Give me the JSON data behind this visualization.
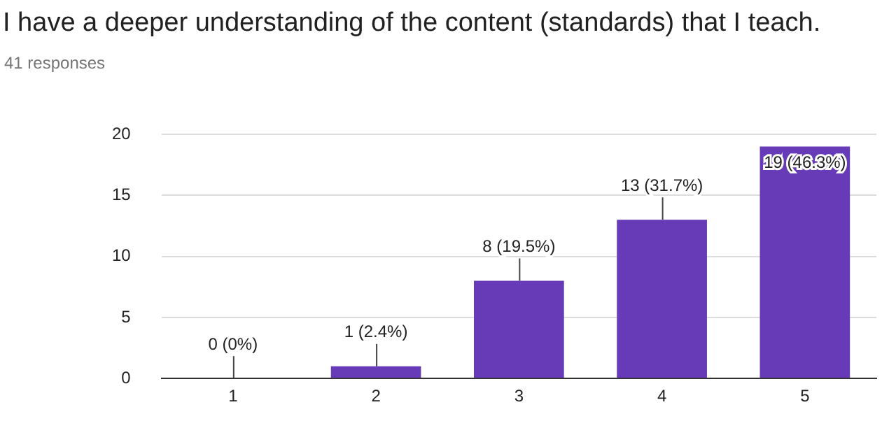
{
  "chart_data": {
    "type": "bar",
    "title": "I have a deeper understanding of the content (standards) that I teach.",
    "subtitle": "41 responses",
    "categories": [
      "1",
      "2",
      "3",
      "4",
      "5"
    ],
    "values": [
      0,
      1,
      8,
      13,
      19
    ],
    "value_labels": [
      "0 (0%)",
      "1 (2.4%)",
      "8 (19.5%)",
      "13 (31.7%)",
      "19 (46.3%)"
    ],
    "color": "#673ab7",
    "ylim": [
      0,
      20
    ],
    "yticks": [
      0,
      5,
      10,
      15,
      20
    ],
    "grid": "y",
    "legend": false
  }
}
